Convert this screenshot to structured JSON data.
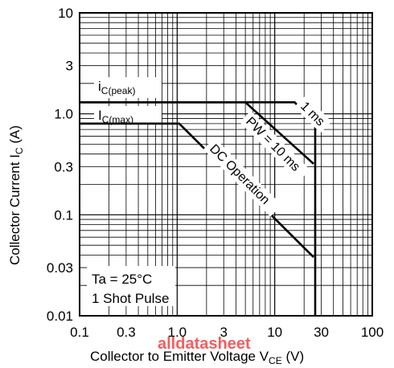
{
  "chart_data": {
    "type": "line",
    "xscale": "log",
    "yscale": "log",
    "xlim": [
      0.1,
      100
    ],
    "ylim": [
      0.01,
      10
    ],
    "grid": true,
    "xlabel": {
      "main": "Collector to Emitter Voltage  V",
      "sub": "CE",
      "unit": "  (V)"
    },
    "ylabel": {
      "main": "Collector Current  I",
      "sub": "C",
      "unit": "  (A)"
    },
    "x_ticks": [
      {
        "v": 0.1,
        "label": "0.1"
      },
      {
        "v": 0.3,
        "label": "0.3"
      },
      {
        "v": 1,
        "label": "1.0"
      },
      {
        "v": 3,
        "label": "3"
      },
      {
        "v": 10,
        "label": "10"
      },
      {
        "v": 30,
        "label": "30"
      },
      {
        "v": 100,
        "label": "100"
      }
    ],
    "y_ticks": [
      {
        "v": 0.01,
        "label": "0.01"
      },
      {
        "v": 0.03,
        "label": "0.03"
      },
      {
        "v": 0.1,
        "label": "0.1"
      },
      {
        "v": 0.3,
        "label": "0.3"
      },
      {
        "v": 1,
        "label": "1.0"
      },
      {
        "v": 3,
        "label": "3"
      },
      {
        "v": 10,
        "label": "10"
      }
    ],
    "series": [
      {
        "x": [
          0.1,
          16,
          26,
          26
        ],
        "y": [
          1.3,
          1.3,
          0.8,
          0.01
        ]
      },
      {
        "x": [
          0.1,
          5,
          25
        ],
        "y": [
          1.3,
          1.3,
          0.32
        ]
      },
      {
        "x": [
          0.1,
          1.05,
          25
        ],
        "y": [
          0.8,
          0.8,
          0.038
        ]
      }
    ],
    "annotations": [
      {
        "id": "ic_peak",
        "main": "i",
        "sub": "C(peak)"
      },
      {
        "id": "ic_max",
        "main": "I",
        "sub": "C(max)"
      },
      {
        "id": "one_ms",
        "text": "1 ms"
      },
      {
        "id": "pw",
        "text": "PW = 10 ms"
      },
      {
        "id": "dc",
        "text": "DC Operation"
      },
      {
        "id": "ta",
        "text": "Ta = 25°C"
      },
      {
        "id": "pulse",
        "text": "1 Shot Pulse"
      }
    ]
  },
  "watermark": "alldatasheet"
}
